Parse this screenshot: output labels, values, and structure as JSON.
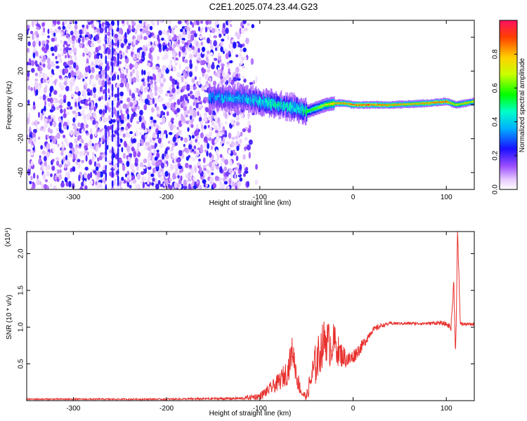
{
  "title": "C2E1.2025.074.23.44.G23",
  "chart_data": [
    {
      "type": "heatmap",
      "xlabel": "Height of straight line (km)",
      "ylabel": "Frequency (Hz)",
      "xlim": [
        -350,
        130
      ],
      "ylim": [
        -50,
        50
      ],
      "x_ticks": [
        -300,
        -200,
        -100,
        0,
        100
      ],
      "y_ticks": [
        -40,
        -20,
        0,
        20,
        40
      ],
      "colorbar": {
        "label": "Normalized spectral amplitude",
        "range": [
          0,
          1
        ],
        "ticks": [
          0.0,
          0.2,
          0.4,
          0.6,
          0.8
        ],
        "tick_labels": [
          "0.0",
          "0.2",
          "0.4",
          "0.6",
          "0.8"
        ]
      },
      "signal_track": {
        "x": [
          -155,
          -140,
          -120,
          -100,
          -80,
          -60,
          -50,
          -40,
          -30,
          -20,
          -10,
          0,
          20,
          40,
          60,
          80,
          100,
          110,
          120,
          130
        ],
        "freq": [
          5,
          4,
          4,
          2,
          0,
          -2,
          -4,
          -2,
          0,
          1,
          1,
          0,
          0,
          0,
          0.5,
          1,
          2,
          0,
          1,
          2
        ],
        "amplitude": [
          0.35,
          0.4,
          0.4,
          0.45,
          0.5,
          0.45,
          0.55,
          0.6,
          0.7,
          0.8,
          0.85,
          0.9,
          0.9,
          0.85,
          0.8,
          0.85,
          0.9,
          0.7,
          0.8,
          0.75
        ]
      },
      "noise_region": {
        "x_from": -350,
        "x_to": -120
      }
    },
    {
      "type": "line",
      "xlabel": "Height of straight line (km)",
      "ylabel": "SNR (10 * v/v)",
      "y_multiplier_label": "(x10⁴)",
      "xlim": [
        -350,
        130
      ],
      "ylim": [
        0,
        2.3
      ],
      "x_ticks": [
        -300,
        -200,
        -100,
        0,
        100
      ],
      "y_ticks": [
        0.5,
        1.0,
        1.5,
        2.0
      ],
      "y_tick_labels": [
        "0.5",
        "1.0",
        "1.5",
        "2.0"
      ],
      "series": [
        {
          "color": "#e8322f",
          "x": [
            -350,
            -300,
            -200,
            -120,
            -100,
            -90,
            -80,
            -70,
            -65,
            -60,
            -55,
            -50,
            -45,
            -40,
            -30,
            -25,
            -20,
            -15,
            -10,
            -5,
            0,
            10,
            20,
            30,
            40,
            60,
            80,
            90,
            100,
            105,
            108,
            110,
            112,
            115,
            120,
            130
          ],
          "y": [
            0.02,
            0.02,
            0.02,
            0.03,
            0.06,
            0.15,
            0.25,
            0.4,
            0.7,
            0.3,
            0.1,
            0.05,
            0.3,
            0.5,
            0.85,
            0.75,
            0.8,
            0.65,
            0.6,
            0.55,
            0.6,
            0.75,
            0.95,
            1.02,
            1.05,
            1.05,
            1.05,
            1.06,
            1.04,
            1.0,
            1.6,
            0.6,
            2.3,
            1.05,
            1.04,
            1.04
          ],
          "noise_amplitude": [
            0.01,
            0.01,
            0.01,
            0.02,
            0.05,
            0.08,
            0.12,
            0.18,
            0.2,
            0.15,
            0.06,
            0.05,
            0.2,
            0.3,
            0.3,
            0.3,
            0.25,
            0.2,
            0.15,
            0.12,
            0.1,
            0.08,
            0.05,
            0.03,
            0.02,
            0.02,
            0.02,
            0.03,
            0.03,
            0.05,
            0.1,
            0.1,
            0.1,
            0.03,
            0.02,
            0.02
          ]
        }
      ]
    }
  ]
}
